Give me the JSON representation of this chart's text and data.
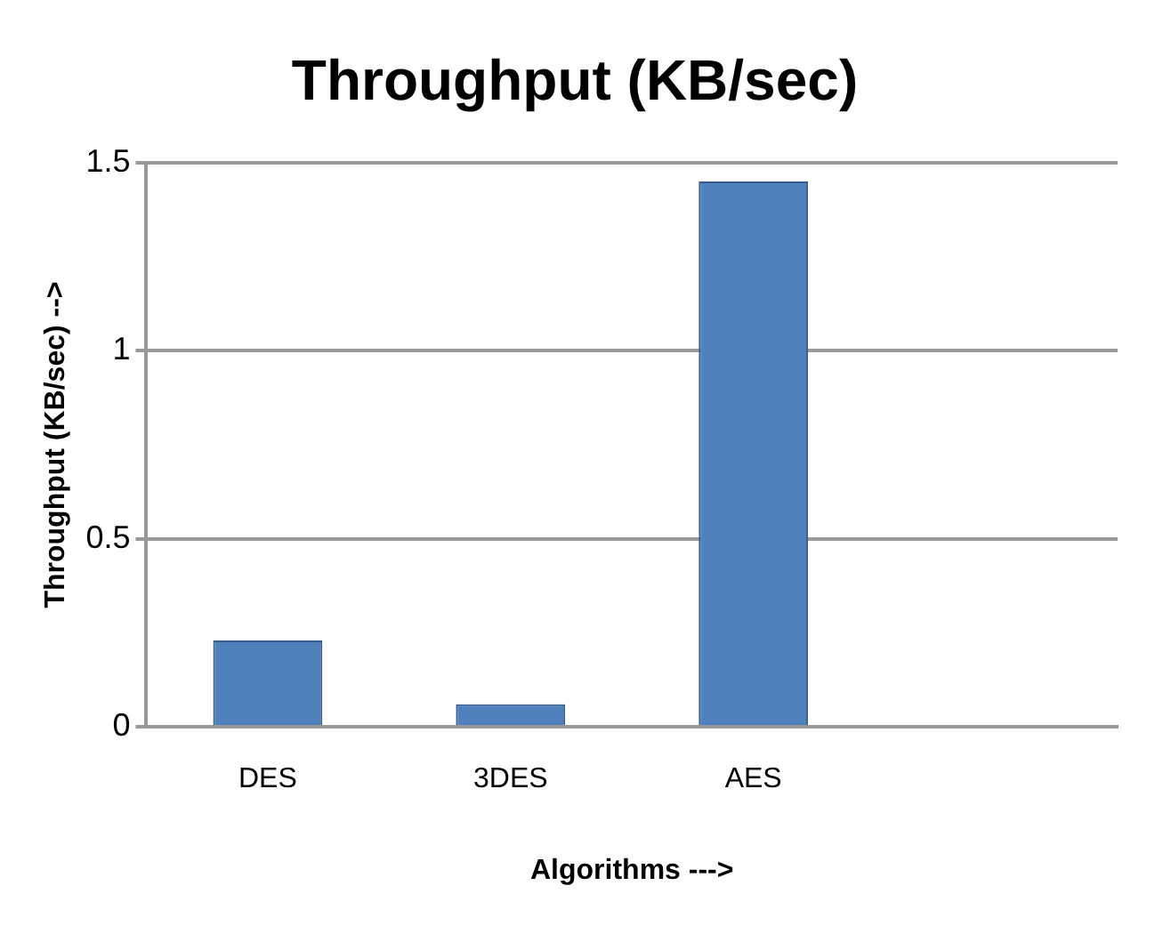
{
  "chart_data": {
    "type": "bar",
    "title": "Throughput (KB/sec)",
    "xlabel": "Algorithms --->",
    "ylabel": "Throughput (KB/sec) -->",
    "categories": [
      "DES",
      "3DES",
      "AES",
      null
    ],
    "values": [
      0.23,
      0.06,
      1.45,
      null
    ],
    "color": "#4f81bd",
    "ylim": [
      0,
      1.5
    ],
    "yticks": [
      0,
      0.5,
      1,
      1.5
    ],
    "grid": "y",
    "legend": false
  }
}
